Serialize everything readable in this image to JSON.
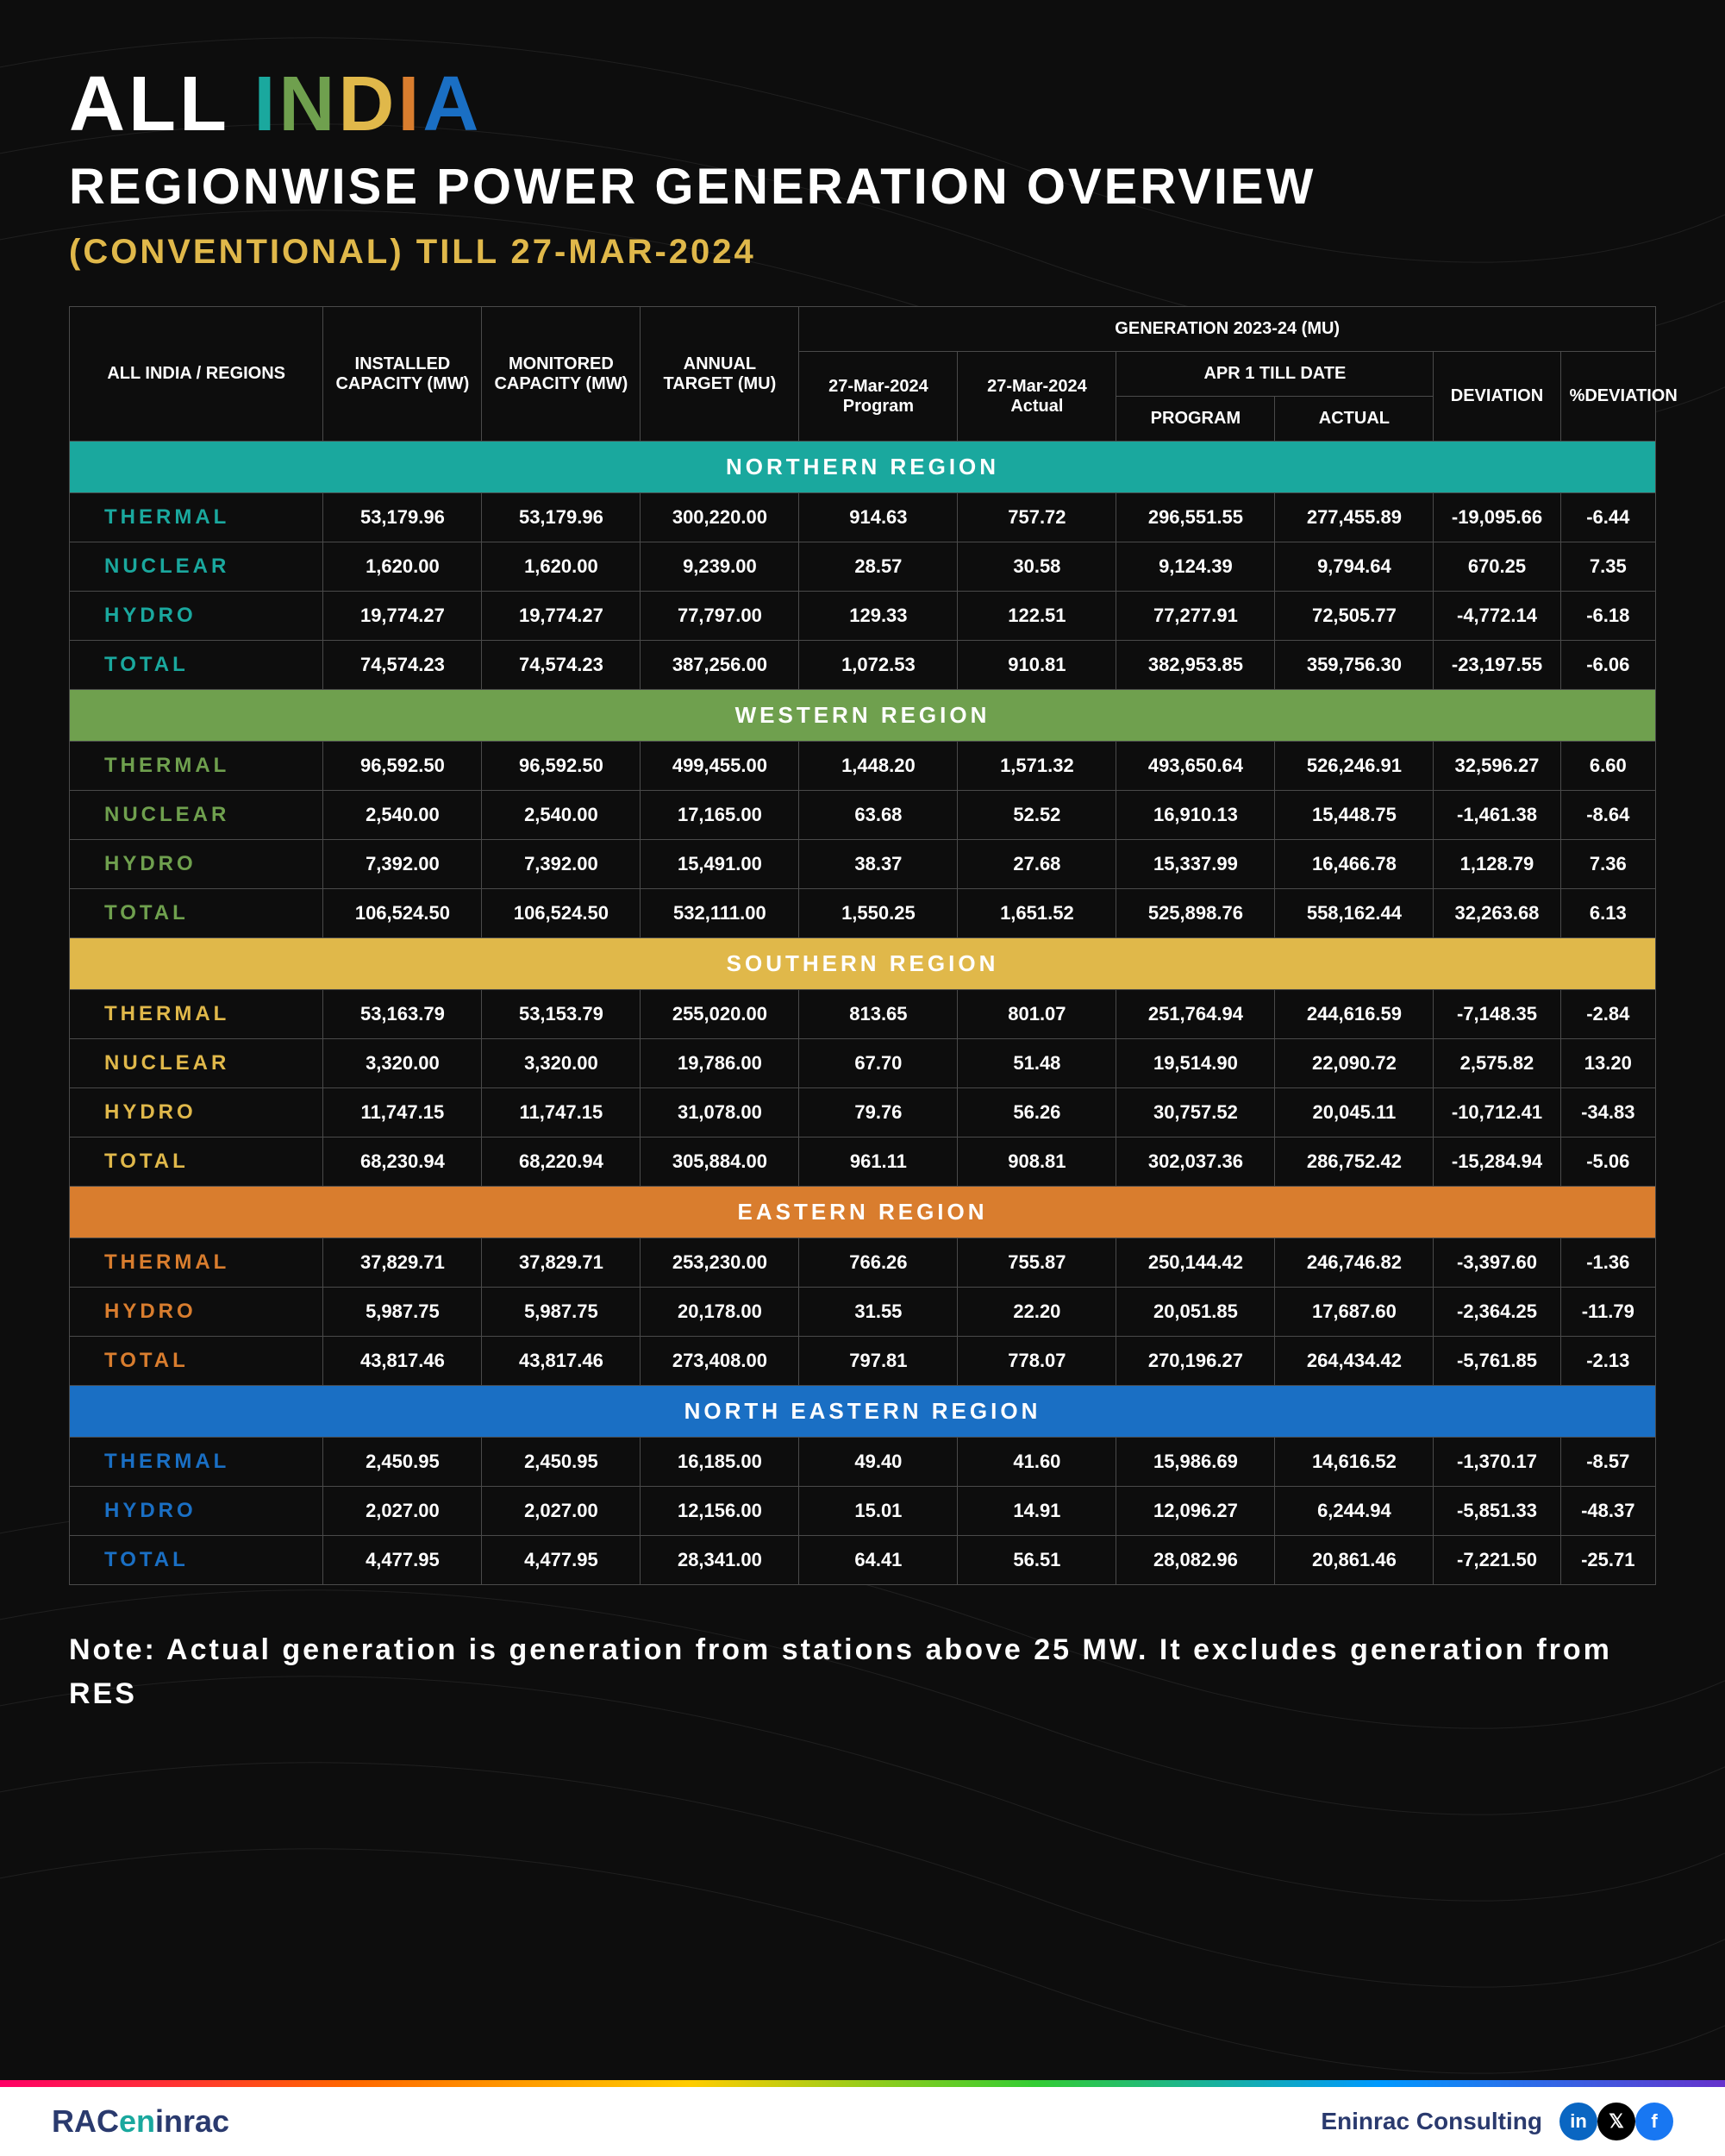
{
  "title": {
    "all": "ALL",
    "india_letters": [
      {
        "char": "I",
        "color": "#1aa89e"
      },
      {
        "char": "N",
        "color": "#6fa04e"
      },
      {
        "char": "D",
        "color": "#e0b84a"
      },
      {
        "char": "I",
        "color": "#d97d2e"
      },
      {
        "char": "A",
        "color": "#1a6fc4"
      }
    ],
    "subtitle": "REGIONWISE POWER GENERATION OVERVIEW",
    "sub2": "(CONVENTIONAL) TILL 27-MAR-2024"
  },
  "headers": {
    "col0": "ALL INDIA / REGIONS",
    "col1": "INSTALLED CAPACITY (MW)",
    "col2": "MONITORED CAPACITY (MW)",
    "col3": "ANNUAL TARGET (MU)",
    "gen_group": "GENERATION 2023-24 (MU)",
    "col4": "27-Mar-2024 Program",
    "col5": "27-Mar-2024 Actual",
    "apr_group": "APR 1 TILL DATE",
    "col6": "PROGRAM",
    "col7": "ACTUAL",
    "col8": "DEVIATION",
    "col9": "%DEVIATION"
  },
  "regions": [
    {
      "name": "NORTHERN REGION",
      "header_bg": "#1aa89e",
      "label_color": "#1aa89e",
      "rows": [
        {
          "label": "THERMAL",
          "v": [
            "53,179.96",
            "53,179.96",
            "300,220.00",
            "914.63",
            "757.72",
            "296,551.55",
            "277,455.89",
            "-19,095.66",
            "-6.44"
          ]
        },
        {
          "label": "NUCLEAR",
          "v": [
            "1,620.00",
            "1,620.00",
            "9,239.00",
            "28.57",
            "30.58",
            "9,124.39",
            "9,794.64",
            "670.25",
            "7.35"
          ]
        },
        {
          "label": "HYDRO",
          "v": [
            "19,774.27",
            "19,774.27",
            "77,797.00",
            "129.33",
            "122.51",
            "77,277.91",
            "72,505.77",
            "-4,772.14",
            "-6.18"
          ]
        },
        {
          "label": "TOTAL",
          "v": [
            "74,574.23",
            "74,574.23",
            "387,256.00",
            "1,072.53",
            "910.81",
            "382,953.85",
            "359,756.30",
            "-23,197.55",
            "-6.06"
          ]
        }
      ]
    },
    {
      "name": "WESTERN REGION",
      "header_bg": "#6fa04e",
      "label_color": "#6fa04e",
      "rows": [
        {
          "label": "THERMAL",
          "v": [
            "96,592.50",
            "96,592.50",
            "499,455.00",
            "1,448.20",
            "1,571.32",
            "493,650.64",
            "526,246.91",
            "32,596.27",
            "6.60"
          ]
        },
        {
          "label": "NUCLEAR",
          "v": [
            "2,540.00",
            "2,540.00",
            "17,165.00",
            "63.68",
            "52.52",
            "16,910.13",
            "15,448.75",
            "-1,461.38",
            "-8.64"
          ]
        },
        {
          "label": "HYDRO",
          "v": [
            "7,392.00",
            "7,392.00",
            "15,491.00",
            "38.37",
            "27.68",
            "15,337.99",
            "16,466.78",
            "1,128.79",
            "7.36"
          ]
        },
        {
          "label": "TOTAL",
          "v": [
            "106,524.50",
            "106,524.50",
            "532,111.00",
            "1,550.25",
            "1,651.52",
            "525,898.76",
            "558,162.44",
            "32,263.68",
            "6.13"
          ]
        }
      ]
    },
    {
      "name": "SOUTHERN REGION",
      "header_bg": "#e0b84a",
      "label_color": "#e0b84a",
      "rows": [
        {
          "label": "THERMAL",
          "v": [
            "53,163.79",
            "53,153.79",
            "255,020.00",
            "813.65",
            "801.07",
            "251,764.94",
            "244,616.59",
            "-7,148.35",
            "-2.84"
          ]
        },
        {
          "label": "NUCLEAR",
          "v": [
            "3,320.00",
            "3,320.00",
            "19,786.00",
            "67.70",
            "51.48",
            "19,514.90",
            "22,090.72",
            "2,575.82",
            "13.20"
          ]
        },
        {
          "label": "HYDRO",
          "v": [
            "11,747.15",
            "11,747.15",
            "31,078.00",
            "79.76",
            "56.26",
            "30,757.52",
            "20,045.11",
            "-10,712.41",
            "-34.83"
          ]
        },
        {
          "label": "TOTAL",
          "v": [
            "68,230.94",
            "68,220.94",
            "305,884.00",
            "961.11",
            "908.81",
            "302,037.36",
            "286,752.42",
            "-15,284.94",
            "-5.06"
          ]
        }
      ]
    },
    {
      "name": "EASTERN REGION",
      "header_bg": "#d97d2e",
      "label_color": "#d97d2e",
      "rows": [
        {
          "label": "THERMAL",
          "v": [
            "37,829.71",
            "37,829.71",
            "253,230.00",
            "766.26",
            "755.87",
            "250,144.42",
            "246,746.82",
            "-3,397.60",
            "-1.36"
          ]
        },
        {
          "label": "HYDRO",
          "v": [
            "5,987.75",
            "5,987.75",
            "20,178.00",
            "31.55",
            "22.20",
            "20,051.85",
            "17,687.60",
            "-2,364.25",
            "-11.79"
          ]
        },
        {
          "label": "TOTAL",
          "v": [
            "43,817.46",
            "43,817.46",
            "273,408.00",
            "797.81",
            "778.07",
            "270,196.27",
            "264,434.42",
            "-5,761.85",
            "-2.13"
          ]
        }
      ]
    },
    {
      "name": "NORTH EASTERN REGION",
      "header_bg": "#1a6fc4",
      "label_color": "#1a6fc4",
      "rows": [
        {
          "label": "THERMAL",
          "v": [
            "2,450.95",
            "2,450.95",
            "16,185.00",
            "49.40",
            "41.60",
            "15,986.69",
            "14,616.52",
            "-1,370.17",
            "-8.57"
          ]
        },
        {
          "label": "HYDRO",
          "v": [
            "2,027.00",
            "2,027.00",
            "12,156.00",
            "15.01",
            "14.91",
            "12,096.27",
            "6,244.94",
            "-5,851.33",
            "-48.37"
          ]
        },
        {
          "label": "TOTAL",
          "v": [
            "4,477.95",
            "4,477.95",
            "28,341.00",
            "64.41",
            "56.51",
            "28,082.96",
            "20,861.46",
            "-7,221.50",
            "-25.71"
          ]
        }
      ]
    }
  ],
  "note": "Note: Actual generation is generation from stations above 25 MW. It excludes generation from RES",
  "footer": {
    "logo_prefix": "RAC",
    "logo_teal": "en",
    "logo_suffix": "inrac",
    "company": "Eninrac Consulting",
    "social": [
      {
        "name": "linkedin-icon",
        "bg": "#0a66c2",
        "glyph": "in"
      },
      {
        "name": "x-icon",
        "bg": "#000000",
        "glyph": "𝕏"
      },
      {
        "name": "facebook-icon",
        "bg": "#1877f2",
        "glyph": "f"
      }
    ]
  },
  "col_widths": [
    "16%",
    "10%",
    "10%",
    "10%",
    "10%",
    "10%",
    "10%",
    "10%",
    "8%",
    "6%"
  ]
}
